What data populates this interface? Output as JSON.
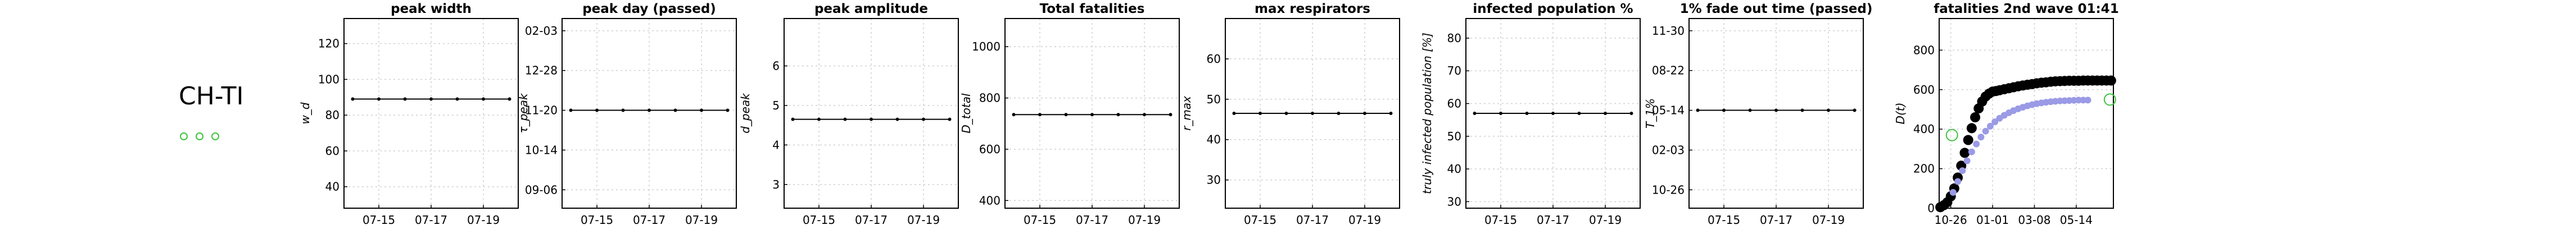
{
  "region": "CH-TI",
  "legend_markers": [
    "o",
    "o",
    "o"
  ],
  "colors": {
    "axis": "#000000",
    "grid": "#cfcfcf",
    "series_flat": "#000000",
    "wave_black": "#000000",
    "wave_blue": "#9a9ae6",
    "marker_green": "#3cc43c"
  },
  "chart_data": [
    {
      "type": "line",
      "title": "peak width",
      "ylabel": "w_d",
      "x": [
        "07-14",
        "07-15",
        "07-16",
        "07-17",
        "07-18",
        "07-19",
        "07-20"
      ],
      "xticks": [
        "07-15",
        "07-17",
        "07-19"
      ],
      "ylim": [
        28,
        134
      ],
      "yticks": [
        40,
        60,
        80,
        100,
        120
      ],
      "values": [
        89,
        89,
        89,
        89,
        89,
        89,
        89
      ],
      "grid": true
    },
    {
      "type": "line",
      "title": "peak day (passed)",
      "ylabel": "τ_peak",
      "x": [
        "07-14",
        "07-15",
        "07-16",
        "07-17",
        "07-18",
        "07-19",
        "07-20"
      ],
      "xticks": [
        "07-15",
        "07-17",
        "07-19"
      ],
      "ylim": [
        0,
        6.2
      ],
      "yticks": [
        0.6,
        1.9,
        3.2,
        4.5,
        5.8
      ],
      "yticklabels": [
        "09-06",
        "10-14",
        "11-20",
        "12-28",
        "02-03"
      ],
      "values": [
        3.2,
        3.2,
        3.2,
        3.2,
        3.2,
        3.2,
        3.2
      ],
      "grid": true
    },
    {
      "type": "line",
      "title": "peak amplitude",
      "ylabel": "d_peak",
      "x": [
        "07-14",
        "07-15",
        "07-16",
        "07-17",
        "07-18",
        "07-19",
        "07-20"
      ],
      "xticks": [
        "07-15",
        "07-17",
        "07-19"
      ],
      "ylim": [
        2.4,
        7.2
      ],
      "yticks": [
        3,
        4,
        5,
        6
      ],
      "values": [
        4.65,
        4.65,
        4.65,
        4.65,
        4.65,
        4.65,
        4.65
      ],
      "grid": true
    },
    {
      "type": "line",
      "title": "Total fatalities",
      "ylabel": "D_total",
      "x": [
        "07-14",
        "07-15",
        "07-16",
        "07-17",
        "07-18",
        "07-19",
        "07-20"
      ],
      "xticks": [
        "07-15",
        "07-17",
        "07-19"
      ],
      "ylim": [
        370,
        1110
      ],
      "yticks": [
        400,
        600,
        800,
        1000
      ],
      "values": [
        735,
        735,
        735,
        735,
        735,
        735,
        735
      ],
      "grid": true
    },
    {
      "type": "line",
      "title": "max respirators",
      "ylabel": "r_max",
      "x": [
        "07-14",
        "07-15",
        "07-16",
        "07-17",
        "07-18",
        "07-19",
        "07-20"
      ],
      "xticks": [
        "07-15",
        "07-17",
        "07-19"
      ],
      "ylim": [
        23,
        70
      ],
      "yticks": [
        30,
        40,
        50,
        60
      ],
      "values": [
        46.5,
        46.5,
        46.5,
        46.5,
        46.5,
        46.5,
        46.5
      ],
      "grid": true
    },
    {
      "type": "line",
      "title": "infected population %",
      "ylabel": "truly infected population [%]",
      "x": [
        "07-14",
        "07-15",
        "07-16",
        "07-17",
        "07-18",
        "07-19",
        "07-20"
      ],
      "xticks": [
        "07-15",
        "07-17",
        "07-19"
      ],
      "ylim": [
        28,
        86
      ],
      "yticks": [
        30,
        40,
        50,
        60,
        70,
        80
      ],
      "values": [
        57,
        57,
        57,
        57,
        57,
        57,
        57
      ],
      "grid": true
    },
    {
      "type": "line",
      "title": "1% fade out time (passed)",
      "ylabel": "T_1%",
      "x": [
        "07-14",
        "07-15",
        "07-16",
        "07-17",
        "07-18",
        "07-19",
        "07-20"
      ],
      "xticks": [
        "07-15",
        "07-17",
        "07-19"
      ],
      "ylim": [
        0,
        6.2
      ],
      "yticks": [
        0.6,
        1.9,
        3.2,
        4.5,
        5.8
      ],
      "yticklabels": [
        "10-26",
        "02-03",
        "05-14",
        "08-22",
        "11-30"
      ],
      "values": [
        3.2,
        3.2,
        3.2,
        3.2,
        3.2,
        3.2,
        3.2
      ],
      "grid": true
    },
    {
      "type": "scatter",
      "title": "fatalities 2nd wave 01:41",
      "ylabel": "D(t)",
      "xlim": [
        0,
        7.5
      ],
      "xticks": [
        0.5,
        2.3,
        4.1,
        5.9
      ],
      "xticklabels": [
        "10-26",
        "01-01",
        "03-08",
        "05-14"
      ],
      "ylim": [
        0,
        960
      ],
      "yticks": [
        0,
        200,
        400,
        600,
        800
      ],
      "grid": true,
      "series": [
        {
          "style": "black",
          "x": [
            0.05,
            0.2,
            0.35,
            0.5,
            0.65,
            0.8,
            0.95,
            1.1,
            1.25,
            1.4,
            1.55,
            1.7,
            1.85,
            2.0,
            2.15,
            2.3,
            2.45,
            2.6,
            2.8,
            3.0,
            3.2,
            3.4,
            3.6,
            3.8,
            4.0,
            4.2,
            4.4,
            4.6,
            4.8,
            5.0,
            5.2,
            5.4,
            5.6,
            5.8,
            6.0,
            6.2,
            6.4,
            6.6,
            6.8,
            7.0,
            7.2,
            7.4
          ],
          "y": [
            5,
            15,
            30,
            60,
            100,
            155,
            215,
            280,
            345,
            405,
            460,
            505,
            540,
            565,
            580,
            590,
            593,
            597,
            602,
            607,
            612,
            617,
            621,
            625,
            628,
            632,
            635,
            637,
            640,
            642,
            643,
            644,
            645,
            645,
            645,
            646,
            646,
            646,
            646,
            646,
            646,
            646
          ]
        },
        {
          "style": "blue",
          "x": [
            0.6,
            0.8,
            1.0,
            1.2,
            1.4,
            1.6,
            1.8,
            2.0,
            2.2,
            2.4,
            2.6,
            2.8,
            3.0,
            3.2,
            3.4,
            3.6,
            3.8,
            4.0,
            4.2,
            4.4,
            4.6,
            4.8,
            5.0,
            5.2,
            5.4,
            5.6,
            5.8,
            6.0,
            6.2,
            6.4
          ],
          "y": [
            80,
            135,
            190,
            240,
            285,
            325,
            360,
            390,
            415,
            437,
            455,
            470,
            483,
            494,
            503,
            511,
            518,
            524,
            529,
            533,
            536,
            539,
            541,
            543,
            544,
            545,
            546,
            547,
            547,
            547
          ]
        }
      ],
      "markers": [
        {
          "x": 0.55,
          "y": 370
        },
        {
          "x": 7.35,
          "y": 550
        }
      ]
    }
  ]
}
